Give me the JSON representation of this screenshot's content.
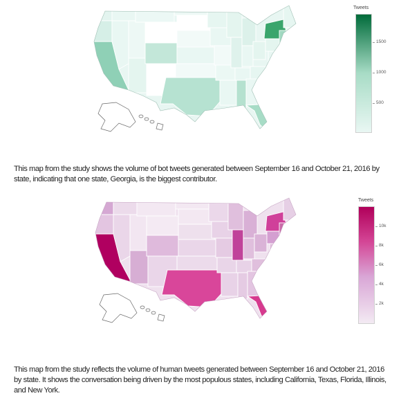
{
  "map1": {
    "legend_title": "Tweets",
    "ticks": [
      "1500",
      "1000",
      "500"
    ],
    "colors": {
      "low": "#e8f6f2",
      "mid": "#9fd8c0",
      "high": "#006b3a"
    }
  },
  "caption1": "This map from the study shows the volume of bot tweets generated between September 16 and October 21, 2016 by state, indicating that one state, Georgia, is the biggest contributor.",
  "map2": {
    "legend_title": "Tweets",
    "ticks": [
      "10k",
      "8k",
      "6k",
      "4k",
      "2k"
    ],
    "colors": {
      "low": "#f3eaf3",
      "mid": "#d9a6d6",
      "high": "#b0005a"
    }
  },
  "caption2": "This map from the study reflects the volume of human tweets generated between September 16 and October 21, 2016 by state. It shows the conversation being driven by the most populous states, including California, Texas, Florida, Illinois, and New York."
}
